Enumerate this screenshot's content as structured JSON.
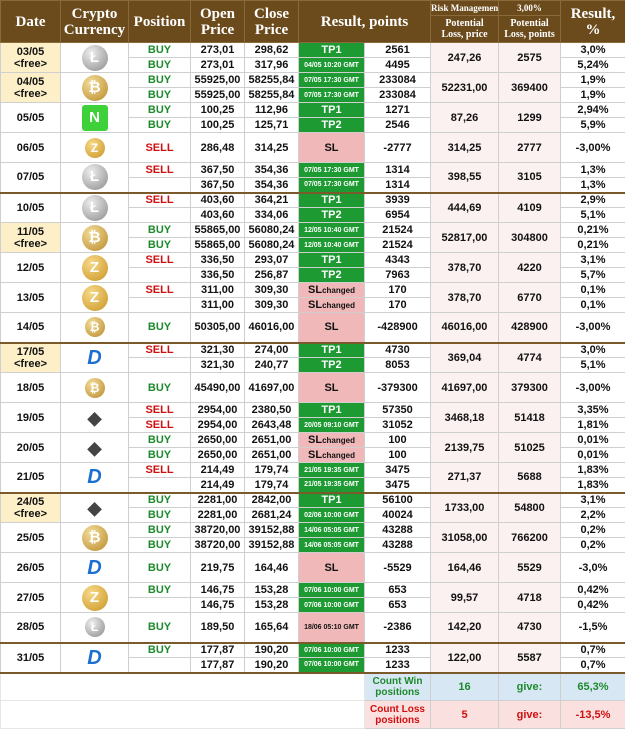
{
  "header": {
    "date": "Date",
    "currency_l1": "Crypto",
    "currency_l2": "Currency",
    "position": "Position",
    "open_l1": "Open",
    "open_l2": "Price",
    "close_l1": "Close",
    "close_l2": "Price",
    "result_points": "Result, points",
    "risk_label": "Risk Management:",
    "risk_value": "3,00%",
    "loss_price_l1": "Potential",
    "loss_price_l2": "Loss, price",
    "loss_points_l1": "Potential",
    "loss_points_l2": "Loss, points",
    "result_pct_l1": "Result,",
    "result_pct_l2": "%"
  },
  "groups": [
    {
      "date": "03/05",
      "free": "<free>",
      "coin": "litecoin-icon",
      "coin_glyph": "Ł",
      "loss_price": "247,26",
      "loss_points": "2575",
      "rows": [
        {
          "position": "BUY",
          "side": "buy",
          "open": "273,01",
          "close": "298,62",
          "tag": "TP1",
          "tag_type": "tp",
          "points": "2561",
          "pct": "3,0%"
        },
        {
          "position": "BUY",
          "side": "buy",
          "open": "273,01",
          "close": "317,96",
          "tag": "04/05 10:20 GMT",
          "tag_type": "tpgmt",
          "points": "4495",
          "pct": "5,24%"
        }
      ]
    },
    {
      "date": "04/05",
      "free": "<free>",
      "coin": "bitcoin-icon",
      "coin_glyph": "₿",
      "loss_price": "52231,00",
      "loss_points": "369400",
      "rows": [
        {
          "position": "BUY",
          "side": "buy",
          "open": "55925,00",
          "close": "58255,84",
          "tag": "07/05 17:30 GMT",
          "tag_type": "tpgmt",
          "points": "233084",
          "pct": "1,9%"
        },
        {
          "position": "BUY",
          "side": "buy",
          "open": "55925,00",
          "close": "58255,84",
          "tag": "07/05 17:30 GMT",
          "tag_type": "tpgmt",
          "points": "233084",
          "pct": "1,9%"
        }
      ]
    },
    {
      "date": "05/05",
      "free": "",
      "coin": "neo-icon",
      "coin_glyph": "N",
      "loss_price": "87,26",
      "loss_points": "1299",
      "rows": [
        {
          "position": "BUY",
          "side": "buy",
          "open": "100,25",
          "close": "112,96",
          "tag": "TP1",
          "tag_type": "tp",
          "points": "1271",
          "pct": "2,94%"
        },
        {
          "position": "BUY",
          "side": "buy",
          "open": "100,25",
          "close": "125,71",
          "tag": "TP2",
          "tag_type": "tp",
          "points": "2546",
          "pct": "5,9%"
        }
      ]
    },
    {
      "date": "06/05",
      "free": "",
      "coin": "zcash-icon",
      "coin_glyph": "Z",
      "loss_price": "314,25",
      "loss_points": "2777",
      "rows": [
        {
          "position": "SELL",
          "side": "sell",
          "open": "286,48",
          "close": "314,25",
          "tag": "SL",
          "tag_type": "sl",
          "points": "-2777",
          "pct": "-3,00%"
        }
      ]
    },
    {
      "date": "07/05",
      "free": "",
      "coin": "litecoin-icon",
      "coin_glyph": "Ł",
      "loss_price": "398,55",
      "loss_points": "3105",
      "rows": [
        {
          "position": "SELL",
          "side": "sell",
          "open": "367,50",
          "close": "354,36",
          "tag": "07/05 17:30 GMT",
          "tag_type": "tpgmt",
          "points": "1314",
          "pct": "1,3%"
        },
        {
          "position": "",
          "side": "sell",
          "open": "367,50",
          "close": "354,36",
          "tag": "07/05 17:30 GMT",
          "tag_type": "tpgmt",
          "points": "1314",
          "pct": "1,3%"
        }
      ]
    },
    {
      "date": "10/05",
      "free": "",
      "coin": "litecoin-icon",
      "coin_glyph": "Ł",
      "loss_price": "444,69",
      "loss_points": "4109",
      "section": true,
      "rows": [
        {
          "position": "SELL",
          "side": "sell",
          "open": "403,60",
          "close": "364,21",
          "tag": "TP1",
          "tag_type": "tp",
          "points": "3939",
          "pct": "2,9%"
        },
        {
          "position": "",
          "side": "sell",
          "open": "403,60",
          "close": "334,06",
          "tag": "TP2",
          "tag_type": "tp",
          "points": "6954",
          "pct": "5,1%"
        }
      ]
    },
    {
      "date": "11/05",
      "free": "<free>",
      "coin": "bitcoin-icon",
      "coin_glyph": "₿",
      "loss_price": "52817,00",
      "loss_points": "304800",
      "rows": [
        {
          "position": "BUY",
          "side": "buy",
          "open": "55865,00",
          "close": "56080,24",
          "tag": "12/05 10:40 GMT",
          "tag_type": "tpgmt",
          "points": "21524",
          "pct": "0,21%"
        },
        {
          "position": "BUY",
          "side": "buy",
          "open": "55865,00",
          "close": "56080,24",
          "tag": "12/05 10:40 GMT",
          "tag_type": "tpgmt",
          "points": "21524",
          "pct": "0,21%"
        }
      ]
    },
    {
      "date": "12/05",
      "free": "",
      "coin": "zcash-icon",
      "coin_glyph": "Z",
      "loss_price": "378,70",
      "loss_points": "4220",
      "rows": [
        {
          "position": "SELL",
          "side": "sell",
          "open": "336,50",
          "close": "293,07",
          "tag": "TP1",
          "tag_type": "tp",
          "points": "4343",
          "pct": "3,1%"
        },
        {
          "position": "",
          "side": "sell",
          "open": "336,50",
          "close": "256,87",
          "tag": "TP2",
          "tag_type": "tp",
          "points": "7963",
          "pct": "5,7%"
        }
      ]
    },
    {
      "date": "13/05",
      "free": "",
      "coin": "zcash-icon",
      "coin_glyph": "Z",
      "loss_price": "378,70",
      "loss_points": "6770",
      "rows": [
        {
          "position": "SELL",
          "side": "sell",
          "open": "311,00",
          "close": "309,30",
          "tag": "SL",
          "tag_sub": "changed",
          "tag_type": "sl",
          "points": "170",
          "pct": "0,1%"
        },
        {
          "position": "",
          "side": "sell",
          "open": "311,00",
          "close": "309,30",
          "tag": "SL",
          "tag_sub": "changed",
          "tag_type": "sl",
          "points": "170",
          "pct": "0,1%"
        }
      ]
    },
    {
      "date": "14/05",
      "free": "",
      "coin": "bitcoin-icon",
      "coin_glyph": "₿",
      "loss_price": "46016,00",
      "loss_points": "428900",
      "rows": [
        {
          "position": "BUY",
          "side": "buy",
          "open": "50305,00",
          "close": "46016,00",
          "tag": "SL",
          "tag_type": "sl",
          "points": "-428900",
          "pct": "-3,00%"
        }
      ]
    },
    {
      "date": "17/05",
      "free": "<free>",
      "coin": "dash-icon",
      "coin_glyph": "D",
      "loss_price": "369,04",
      "loss_points": "4774",
      "section": true,
      "rows": [
        {
          "position": "SELL",
          "side": "sell",
          "open": "321,30",
          "close": "274,00",
          "tag": "TP1",
          "tag_type": "tp",
          "points": "4730",
          "pct": "3,0%"
        },
        {
          "position": "",
          "side": "sell",
          "open": "321,30",
          "close": "240,77",
          "tag": "TP2",
          "tag_type": "tp",
          "points": "8053",
          "pct": "5,1%"
        }
      ]
    },
    {
      "date": "18/05",
      "free": "",
      "coin": "bitcoin-icon",
      "coin_glyph": "₿",
      "loss_price": "41697,00",
      "loss_points": "379300",
      "rows": [
        {
          "position": "BUY",
          "side": "buy",
          "open": "45490,00",
          "close": "41697,00",
          "tag": "SL",
          "tag_type": "sl",
          "points": "-379300",
          "pct": "-3,00%"
        }
      ]
    },
    {
      "date": "19/05",
      "free": "",
      "coin": "ethereum-icon",
      "coin_glyph": "◆",
      "loss_price": "3468,18",
      "loss_points": "51418",
      "rows": [
        {
          "position": "SELL",
          "side": "sell",
          "open": "2954,00",
          "close": "2380,50",
          "tag": "TP1",
          "tag_type": "tp",
          "points": "57350",
          "pct": "3,35%"
        },
        {
          "position": "SELL",
          "side": "sell",
          "open": "2954,00",
          "close": "2643,48",
          "tag": "20/05 09:10 GMT",
          "tag_type": "tpgmt",
          "points": "31052",
          "pct": "1,81%"
        }
      ]
    },
    {
      "date": "20/05",
      "free": "",
      "coin": "ethereum-icon",
      "coin_glyph": "◆",
      "loss_price": "2139,75",
      "loss_points": "51025",
      "rows": [
        {
          "position": "BUY",
          "side": "buy",
          "open": "2650,00",
          "close": "2651,00",
          "tag": "SL",
          "tag_sub": "changed",
          "tag_type": "sl",
          "points": "100",
          "pct": "0,01%"
        },
        {
          "position": "BUY",
          "side": "buy",
          "open": "2650,00",
          "close": "2651,00",
          "tag": "SL",
          "tag_sub": "changed",
          "tag_type": "sl",
          "points": "100",
          "pct": "0,01%"
        }
      ]
    },
    {
      "date": "21/05",
      "free": "",
      "coin": "dash-icon",
      "coin_glyph": "D",
      "loss_price": "271,37",
      "loss_points": "5688",
      "rows": [
        {
          "position": "SELL",
          "side": "sell",
          "open": "214,49",
          "close": "179,74",
          "tag": "21/05 19:35 GMT",
          "tag_type": "tpgmt",
          "points": "3475",
          "pct": "1,83%"
        },
        {
          "position": "",
          "side": "sell",
          "open": "214,49",
          "close": "179,74",
          "tag": "21/05 19:35 GMT",
          "tag_type": "tpgmt",
          "points": "3475",
          "pct": "1,83%"
        }
      ]
    },
    {
      "date": "24/05",
      "free": "<free>",
      "coin": "ethereum-icon",
      "coin_glyph": "◆",
      "loss_price": "1733,00",
      "loss_points": "54800",
      "section": true,
      "rows": [
        {
          "position": "BUY",
          "side": "buy",
          "open": "2281,00",
          "close": "2842,00",
          "tag": "TP1",
          "tag_type": "tp",
          "points": "56100",
          "pct": "3,1%"
        },
        {
          "position": "BUY",
          "side": "buy",
          "open": "2281,00",
          "close": "2681,24",
          "tag": "02/06 10:00 GMT",
          "tag_type": "tpgmt",
          "points": "40024",
          "pct": "2,2%"
        }
      ]
    },
    {
      "date": "25/05",
      "free": "",
      "coin": "bitcoin-icon",
      "coin_glyph": "₿",
      "loss_price": "31058,00",
      "loss_points": "766200",
      "rows": [
        {
          "position": "BUY",
          "side": "buy",
          "open": "38720,00",
          "close": "39152,88",
          "tag": "14/06 05:05 GMT",
          "tag_type": "tpgmt",
          "points": "43288",
          "pct": "0,2%"
        },
        {
          "position": "BUY",
          "side": "buy",
          "open": "38720,00",
          "close": "39152,88",
          "tag": "14/06 05:05 GMT",
          "tag_type": "tpgmt",
          "points": "43288",
          "pct": "0,2%"
        }
      ]
    },
    {
      "date": "26/05",
      "free": "",
      "coin": "dash-icon",
      "coin_glyph": "D",
      "loss_price": "164,46",
      "loss_points": "5529",
      "rows": [
        {
          "position": "BUY",
          "side": "buy",
          "open": "219,75",
          "close": "164,46",
          "tag": "SL",
          "tag_type": "sl",
          "points": "-5529",
          "pct": "-3,0%"
        }
      ]
    },
    {
      "date": "27/05",
      "free": "",
      "coin": "zcash-icon",
      "coin_glyph": "Z",
      "loss_price": "99,57",
      "loss_points": "4718",
      "rows": [
        {
          "position": "BUY",
          "side": "buy",
          "open": "146,75",
          "close": "153,28",
          "tag": "07/06 10:00 GMT",
          "tag_type": "tpgmt",
          "points": "653",
          "pct": "0,42%"
        },
        {
          "position": "",
          "side": "buy",
          "open": "146,75",
          "close": "153,28",
          "tag": "07/06 10:00 GMT",
          "tag_type": "tpgmt",
          "points": "653",
          "pct": "0,42%"
        }
      ]
    },
    {
      "date": "28/05",
      "free": "",
      "coin": "litecoin-icon",
      "coin_glyph": "Ł",
      "loss_price": "142,20",
      "loss_points": "4730",
      "rows": [
        {
          "position": "BUY",
          "side": "buy",
          "open": "189,50",
          "close": "165,64",
          "tag": "18/06 05:10 GMT",
          "tag_type": "slgmt",
          "points": "-2386",
          "pct": "-1,5%"
        }
      ]
    },
    {
      "date": "31/05",
      "free": "",
      "coin": "dash-icon",
      "coin_glyph": "D",
      "loss_price": "122,00",
      "loss_points": "5587",
      "section": true,
      "rows": [
        {
          "position": "BUY",
          "side": "buy",
          "open": "177,87",
          "close": "190,20",
          "tag": "07/06 10:00 GMT",
          "tag_type": "tpgmt",
          "points": "1233",
          "pct": "0,7%"
        },
        {
          "position": "",
          "side": "buy",
          "open": "177,87",
          "close": "190,20",
          "tag": "07/06 10:00 GMT",
          "tag_type": "tpgmt",
          "points": "1233",
          "pct": "0,7%"
        }
      ]
    }
  ],
  "summary": {
    "win_label": "Count Win positions",
    "win_count": "16",
    "win_give": "give:",
    "win_pct": "65,3%",
    "loss_label": "Count Loss positions",
    "loss_count": "5",
    "loss_give": "give:",
    "loss_pct": "-13,5%"
  },
  "colors": {
    "header_bg": "#6b4a1c",
    "buy": "#1d8a2c",
    "sell": "#d01010",
    "tp": "#1e9a32",
    "sl": "#f0b8b8",
    "free_date_bg": "#fdf0c8"
  }
}
